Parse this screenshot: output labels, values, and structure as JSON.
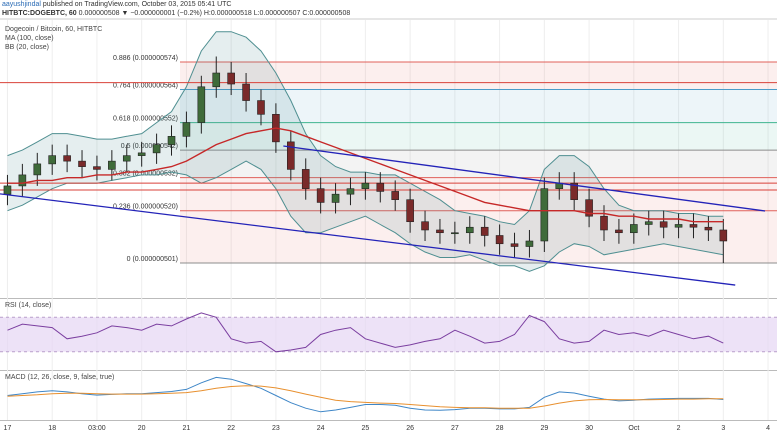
{
  "header": {
    "author": "aayushjindal",
    "published": "published on TradingView.com, October 03, 2015 05:41 UTC",
    "symbol": "HITBTC:DOGEBTC, 60",
    "quote": "0.000000508 ▼ −0.000000001 (−0.2%) H:0.000000518 L:0.000000507 C:0.000000508"
  },
  "chart_data": [
    {
      "type": "candlestick",
      "title": "Dogecoin / Bitcoin, 60, HITBTC",
      "xlim": [
        -0.5,
        51.6
      ],
      "ylim": [
        4.883e-07,
        5.8925e-07
      ],
      "grid": true,
      "xticks": [
        {
          "value": 0,
          "label": "17"
        },
        {
          "value": 3,
          "label": "18"
        },
        {
          "value": 6,
          "label": "03:00"
        },
        {
          "value": 9,
          "label": "20"
        },
        {
          "value": 12,
          "label": "21"
        },
        {
          "value": 15,
          "label": "22"
        },
        {
          "value": 18,
          "label": "23"
        },
        {
          "value": 21,
          "label": "24"
        },
        {
          "value": 24,
          "label": "25"
        },
        {
          "value": 27,
          "label": "26"
        },
        {
          "value": 30,
          "label": "27"
        },
        {
          "value": 33,
          "label": "28"
        },
        {
          "value": 36,
          "label": "29"
        },
        {
          "value": 39,
          "label": "30"
        },
        {
          "value": 42,
          "label": "Oct"
        },
        {
          "value": 45,
          "label": "2"
        },
        {
          "value": 48,
          "label": "3"
        },
        {
          "value": 51,
          "label": "4"
        }
      ],
      "up_color": "#3f6b3a",
      "down_color": "#7a2a2a",
      "open": [
        5.26e-07,
        5.29e-07,
        5.33e-07,
        5.37e-07,
        5.4e-07,
        5.38e-07,
        5.36e-07,
        5.35e-07,
        5.38e-07,
        5.4e-07,
        5.41e-07,
        5.44e-07,
        5.47e-07,
        5.52e-07,
        5.65e-07,
        5.7e-07,
        5.66e-07,
        5.6e-07,
        5.55e-07,
        5.45e-07,
        5.35e-07,
        5.28e-07,
        5.23e-07,
        5.26e-07,
        5.28e-07,
        5.3e-07,
        5.27e-07,
        5.24e-07,
        5.16e-07,
        5.13e-07,
        5.12e-07,
        5.12e-07,
        5.14e-07,
        5.11e-07,
        5.08e-07,
        5.07e-07,
        5.09e-07,
        5.28e-07,
        5.3e-07,
        5.24e-07,
        5.18e-07,
        5.13e-07,
        5.12e-07,
        5.15e-07,
        5.16e-07,
        5.14e-07,
        5.15e-07,
        5.14e-07,
        5.13e-07
      ],
      "high": [
        5.33e-07,
        5.37e-07,
        5.41e-07,
        5.44e-07,
        5.44e-07,
        5.42e-07,
        5.4e-07,
        5.42e-07,
        5.44e-07,
        5.45e-07,
        5.48e-07,
        5.51e-07,
        5.56e-07,
        5.69e-07,
        5.76e-07,
        5.74e-07,
        5.7e-07,
        5.64e-07,
        5.59e-07,
        5.49e-07,
        5.39e-07,
        5.32e-07,
        5.3e-07,
        5.32e-07,
        5.34e-07,
        5.34e-07,
        5.31e-07,
        5.28e-07,
        5.2e-07,
        5.17e-07,
        5.16e-07,
        5.18e-07,
        5.18e-07,
        5.15e-07,
        5.12e-07,
        5.13e-07,
        5.32e-07,
        5.34e-07,
        5.34e-07,
        5.28e-07,
        5.22e-07,
        5.17e-07,
        5.19e-07,
        5.2e-07,
        5.2e-07,
        5.19e-07,
        5.19e-07,
        5.18e-07,
        5.17e-07
      ],
      "low": [
        5.22e-07,
        5.25e-07,
        5.29e-07,
        5.33e-07,
        5.34e-07,
        5.32e-07,
        5.31e-07,
        5.31e-07,
        5.34e-07,
        5.36e-07,
        5.37e-07,
        5.4e-07,
        5.43e-07,
        5.48e-07,
        5.61e-07,
        5.62e-07,
        5.56e-07,
        5.51e-07,
        5.41e-07,
        5.31e-07,
        5.24e-07,
        5.19e-07,
        5.19e-07,
        5.22e-07,
        5.24e-07,
        5.23e-07,
        5.2e-07,
        5.12e-07,
        5.09e-07,
        5.08e-07,
        5.08e-07,
        5.08e-07,
        5.07e-07,
        5.04e-07,
        5.03e-07,
        5.03e-07,
        5.05e-07,
        5.24e-07,
        5.2e-07,
        5.14e-07,
        5.09e-07,
        5.08e-07,
        5.08e-07,
        5.11e-07,
        5.1e-07,
        5.1e-07,
        5.1e-07,
        5.09e-07,
        5.01e-07
      ],
      "close": [
        5.29e-07,
        5.33e-07,
        5.37e-07,
        5.4e-07,
        5.38e-07,
        5.36e-07,
        5.35e-07,
        5.38e-07,
        5.4e-07,
        5.41e-07,
        5.44e-07,
        5.47e-07,
        5.52e-07,
        5.65e-07,
        5.7e-07,
        5.66e-07,
        5.6e-07,
        5.55e-07,
        5.45e-07,
        5.35e-07,
        5.28e-07,
        5.23e-07,
        5.26e-07,
        5.28e-07,
        5.3e-07,
        5.27e-07,
        5.24e-07,
        5.16e-07,
        5.13e-07,
        5.12e-07,
        5.12e-07,
        5.14e-07,
        5.11e-07,
        5.08e-07,
        5.07e-07,
        5.09e-07,
        5.28e-07,
        5.3e-07,
        5.24e-07,
        5.18e-07,
        5.13e-07,
        5.12e-07,
        5.15e-07,
        5.16e-07,
        5.14e-07,
        5.15e-07,
        5.14e-07,
        5.13e-07,
        5.09e-07
      ],
      "ma": {
        "name": "MA (100, close)",
        "color": "#c62828",
        "values": [
          5.3e-07,
          5.3e-07,
          5.31e-07,
          5.31e-07,
          5.32e-07,
          5.32e-07,
          5.33e-07,
          5.33e-07,
          5.34e-07,
          5.34e-07,
          5.35e-07,
          5.36e-07,
          5.38e-07,
          5.41e-07,
          5.44e-07,
          5.46e-07,
          5.48e-07,
          5.49e-07,
          5.5e-07,
          5.49e-07,
          5.47e-07,
          5.45e-07,
          5.43e-07,
          5.41e-07,
          5.39e-07,
          5.37e-07,
          5.35e-07,
          5.33e-07,
          5.31e-07,
          5.29e-07,
          5.27e-07,
          5.25e-07,
          5.23e-07,
          5.22e-07,
          5.21e-07,
          5.2e-07,
          5.2e-07,
          5.2e-07,
          5.2e-07,
          5.19e-07,
          5.19e-07,
          5.18e-07,
          5.18e-07,
          5.17e-07,
          5.17e-07,
          5.17e-07,
          5.16e-07,
          5.16e-07,
          5.16e-07
        ]
      },
      "bb": {
        "name": "BB (20, close)",
        "color": "#4f8f91",
        "upper": [
          5.4e-07,
          5.42e-07,
          5.45e-07,
          5.48e-07,
          5.48e-07,
          5.47e-07,
          5.46e-07,
          5.46e-07,
          5.47e-07,
          5.48e-07,
          5.52e-07,
          5.56e-07,
          5.65e-07,
          5.78e-07,
          5.85e-07,
          5.85e-07,
          5.83e-07,
          5.78e-07,
          5.7e-07,
          5.6e-07,
          5.48e-07,
          5.4e-07,
          5.36e-07,
          5.34e-07,
          5.34e-07,
          5.33e-07,
          5.33e-07,
          5.3e-07,
          5.27e-07,
          5.24e-07,
          5.2e-07,
          5.19e-07,
          5.18e-07,
          5.16e-07,
          5.15e-07,
          5.2e-07,
          5.35e-07,
          5.4e-07,
          5.4e-07,
          5.36e-07,
          5.28e-07,
          5.22e-07,
          5.2e-07,
          5.2e-07,
          5.2e-07,
          5.19e-07,
          5.19e-07,
          5.18e-07,
          5.18e-07
        ],
        "lower": [
          5.2e-07,
          5.22e-07,
          5.25e-07,
          5.28e-07,
          5.3e-07,
          5.3e-07,
          5.3e-07,
          5.31e-07,
          5.32e-07,
          5.33e-07,
          5.33e-07,
          5.34e-07,
          5.33e-07,
          5.3e-07,
          5.32e-07,
          5.35e-07,
          5.38e-07,
          5.35e-07,
          5.28e-07,
          5.18e-07,
          5.12e-07,
          5.12e-07,
          5.14e-07,
          5.16e-07,
          5.18e-07,
          5.15e-07,
          5.12e-07,
          5.08e-07,
          5.05e-07,
          5.03e-07,
          5.03e-07,
          5.04e-07,
          5.02e-07,
          5e-07,
          5e-07,
          4.98e-07,
          5e-07,
          5.05e-07,
          5.08e-07,
          5.07e-07,
          5.04e-07,
          5.05e-07,
          5.06e-07,
          5.07e-07,
          5.08e-07,
          5.07e-07,
          5.06e-07,
          5.05e-07,
          5.04e-07
        ]
      },
      "fib_levels": [
        {
          "value": 5.74e-07,
          "label": "0.886 (0.000000574)",
          "color": "#e0605a"
        },
        {
          "value": 5.64e-07,
          "label": "0.764 (0.000000564)",
          "color": "#4a9cc8"
        },
        {
          "value": 5.52e-07,
          "label": "0.618 (0.000000552)",
          "color": "#3fb58f"
        },
        {
          "value": 5.42e-07,
          "label": "0.5 (0.000000542)",
          "color": "#8c8c8c"
        },
        {
          "value": 5.32e-07,
          "label": "0.382 (0.000000532)",
          "color": "#e0605a"
        },
        {
          "value": 5.2e-07,
          "label": "0.236 (0.000000520)",
          "color": "#e0605a"
        },
        {
          "value": 5.01e-07,
          "label": "0 (0.000000501)",
          "color": "#8c8c8c"
        }
      ],
      "horizontal_lines": {
        "color": "#d9423a",
        "values": [
          5.665e-07,
          5.3e-07,
          5.275e-07
        ]
      },
      "trendlines": {
        "color": "#2323b8",
        "lines": [
          {
            "x": [
              18.5,
              50.8
            ],
            "y": [
              5.435e-07,
              5.199e-07
            ]
          },
          {
            "x": [
              -0.5,
              48.8
            ],
            "y": [
              5.261e-07,
              4.93e-07
            ]
          }
        ]
      }
    },
    {
      "type": "line",
      "title": "RSI (14, close)",
      "ylim": [
        10,
        90
      ],
      "bands": [
        30,
        70
      ],
      "band_color": "#e6d6f3",
      "series": [
        {
          "color": "#7b3fa0",
          "values": [
            55,
            62,
            60,
            58,
            45,
            48,
            52,
            60,
            58,
            55,
            62,
            60,
            68,
            75,
            70,
            45,
            40,
            42,
            30,
            32,
            35,
            50,
            55,
            58,
            45,
            40,
            35,
            38,
            42,
            45,
            55,
            48,
            40,
            42,
            50,
            72,
            65,
            45,
            40,
            42,
            55,
            50,
            52,
            48,
            55,
            50,
            45,
            48,
            40
          ]
        }
      ]
    },
    {
      "type": "line",
      "title": "MACD (12, 26, close, 9, false, true)",
      "ylim": [
        -6e-09,
        7e-09
      ],
      "series": [
        {
          "color": "#3e86c7",
          "values": [
            5e-10,
            1e-09,
            1.5e-09,
            1.8e-09,
            1.5e-09,
            1e-09,
            6e-10,
            8e-10,
            1e-09,
            1e-09,
            1.3e-09,
            1.6e-09,
            2.2e-09,
            4e-09,
            5.5e-09,
            5e-09,
            3.8e-09,
            2.5e-09,
            5e-10,
            -1.5e-09,
            -3e-09,
            -4e-09,
            -3.5e-09,
            -2.8e-09,
            -2e-09,
            -2e-09,
            -2.2e-09,
            -3e-09,
            -3.5e-09,
            -3.6e-09,
            -3.4e-09,
            -3e-09,
            -3e-09,
            -3.2e-09,
            -3.2e-09,
            -2.8e-09,
            0,
            1.5e-09,
            1.2e-09,
            3e-10,
            -5e-10,
            -1e-09,
            -8e-10,
            -5e-10,
            -4e-10,
            -3e-10,
            -3e-10,
            -3e-10,
            -6e-10
          ]
        },
        {
          "color": "#e8902f",
          "values": [
            3e-10,
            5e-10,
            7e-10,
            1e-09,
            1.1e-09,
            1.1e-09,
            1e-09,
            9e-10,
            9e-10,
            9e-10,
            1e-09,
            1.1e-09,
            1.3e-09,
            1.8e-09,
            2.5e-09,
            3e-09,
            3.2e-09,
            3.1e-09,
            2.6e-09,
            1.8e-09,
            9e-10,
            0,
            -8e-10,
            -1.2e-09,
            -1.4e-09,
            -1.6e-09,
            -1.7e-09,
            -2e-09,
            -2.3e-09,
            -2.6e-09,
            -2.8e-09,
            -2.9e-09,
            -2.9e-09,
            -3e-09,
            -3e-09,
            -3e-09,
            -2.4e-09,
            -1.6e-09,
            -1e-09,
            -7e-10,
            -6e-10,
            -7e-10,
            -7e-10,
            -7e-10,
            -6e-10,
            -5e-10,
            -5e-10,
            -4e-10,
            -4e-10
          ]
        }
      ]
    }
  ]
}
